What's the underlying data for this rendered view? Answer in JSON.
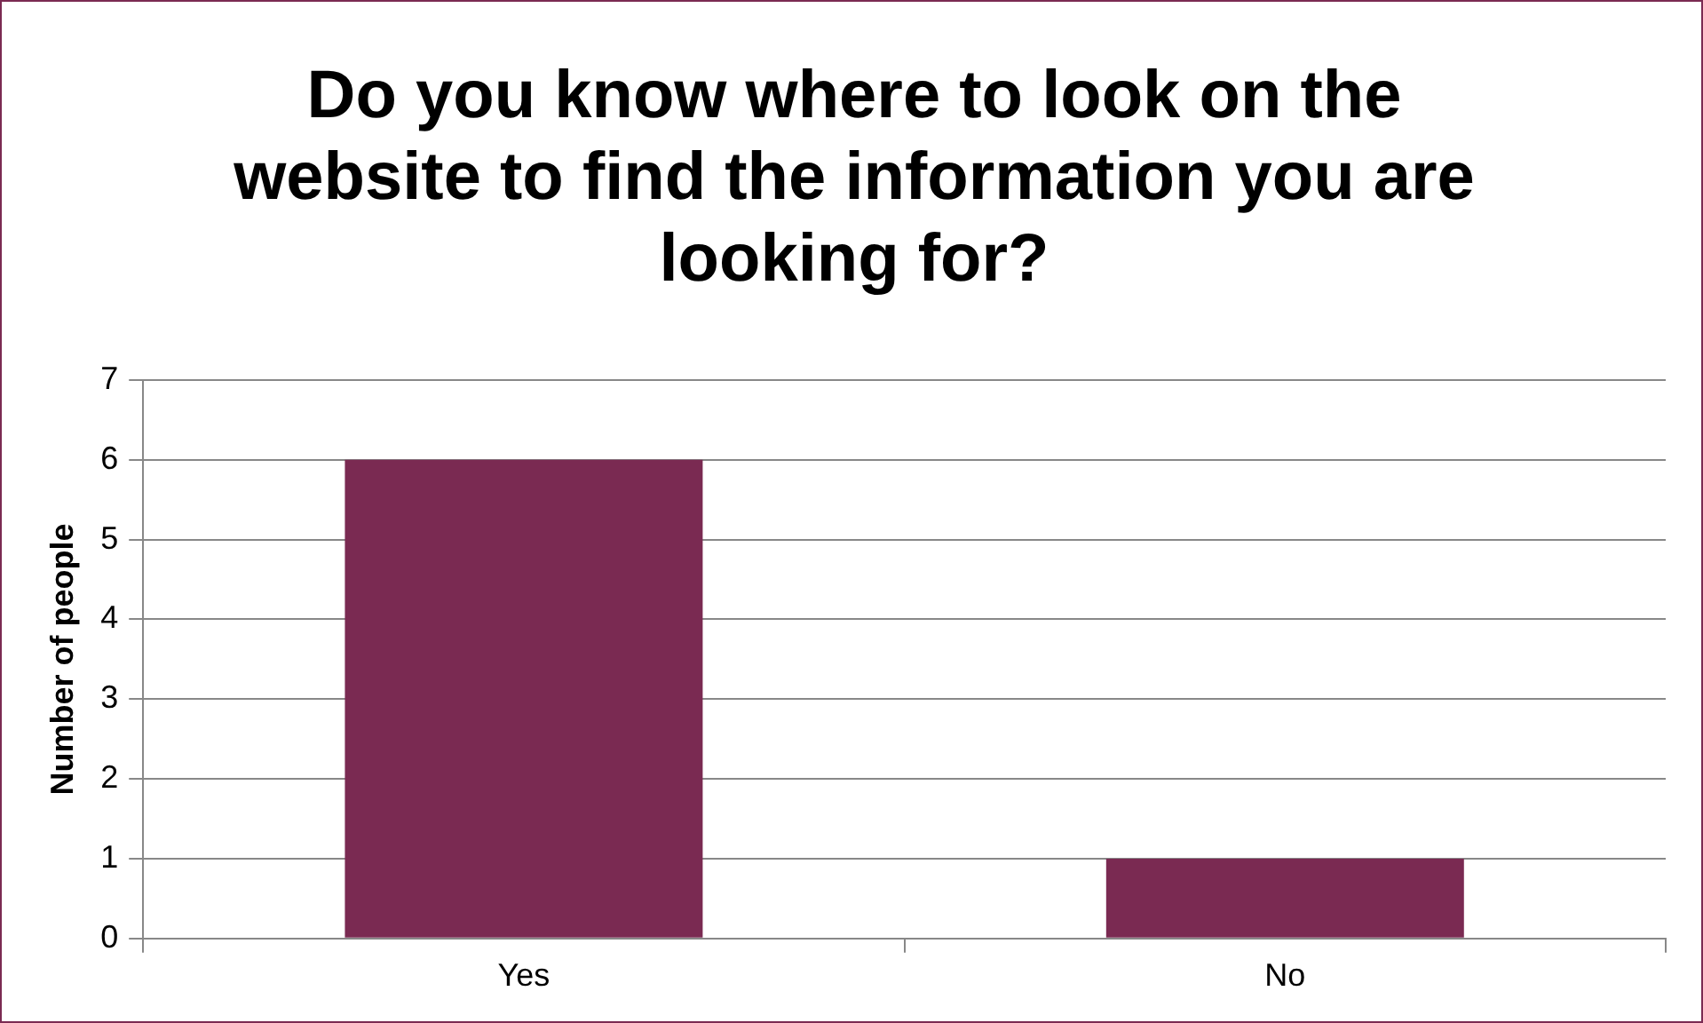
{
  "chart_data": {
    "type": "bar",
    "title": "Do you know where to look on the website to find the information you are looking for?",
    "ylabel": "Number of people",
    "categories": [
      "Yes",
      "No"
    ],
    "values": [
      6,
      1
    ],
    "color": "#7a2a52",
    "ylim": [
      0,
      7
    ],
    "yticks": [
      0,
      1,
      2,
      3,
      4,
      5,
      6,
      7
    ],
    "grid": "y"
  }
}
